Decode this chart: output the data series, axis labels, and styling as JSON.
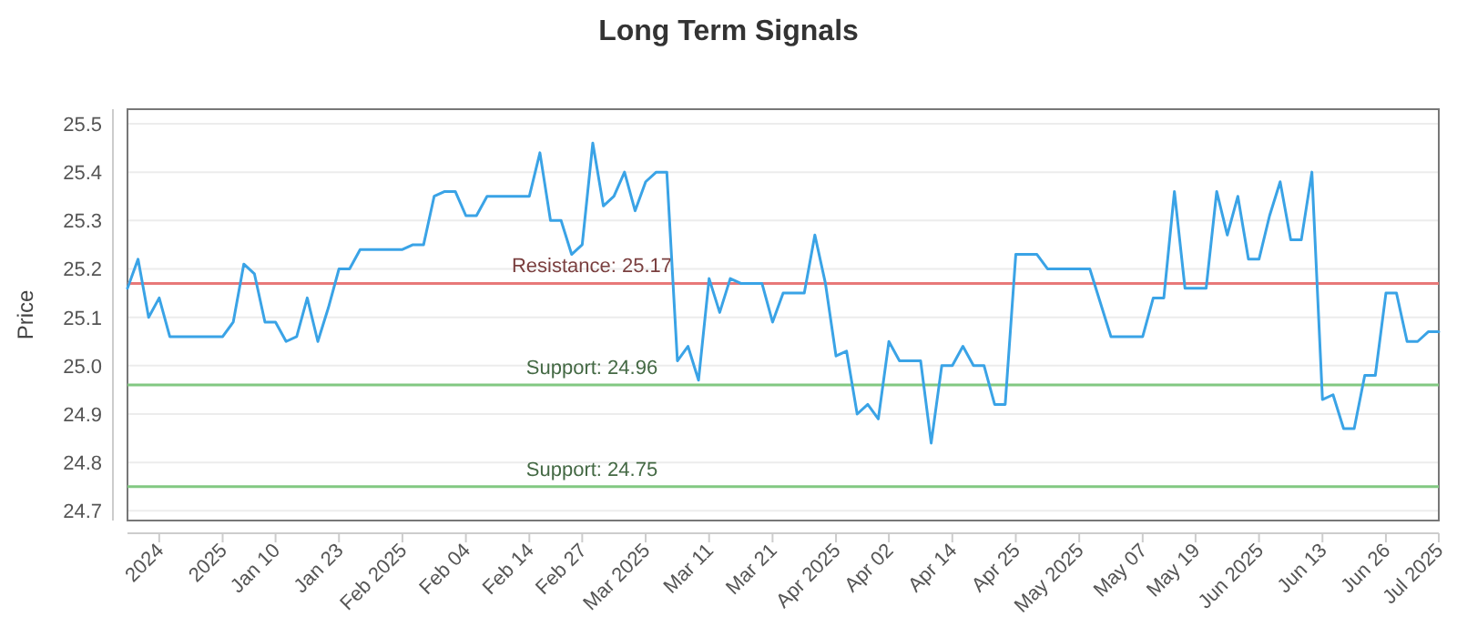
{
  "chart_data": {
    "type": "line",
    "title": "Long Term Signals",
    "ylabel": "Price",
    "categories": [
      null,
      null,
      null,
      "2024",
      null,
      null,
      null,
      null,
      null,
      "2025",
      null,
      null,
      null,
      null,
      "Jan 10",
      null,
      null,
      null,
      null,
      null,
      "Jan 23",
      null,
      null,
      null,
      null,
      null,
      "Feb 2025",
      null,
      null,
      null,
      null,
      null,
      "Feb 04",
      null,
      null,
      null,
      null,
      null,
      "Feb 14",
      null,
      null,
      null,
      null,
      "Feb 27",
      null,
      null,
      null,
      null,
      null,
      "Mar 2025",
      null,
      null,
      null,
      null,
      null,
      "Mar 11",
      null,
      null,
      null,
      null,
      null,
      "Mar 21",
      null,
      null,
      null,
      null,
      null,
      "Apr 2025",
      null,
      null,
      null,
      null,
      "Apr 02",
      null,
      null,
      null,
      null,
      null,
      "Apr 14",
      null,
      null,
      null,
      null,
      null,
      "Apr 25",
      null,
      null,
      null,
      null,
      null,
      "May 2025",
      null,
      null,
      null,
      null,
      null,
      "May 07",
      null,
      null,
      null,
      null,
      "May 19",
      null,
      null,
      null,
      null,
      null,
      "Jun 2025",
      null,
      null,
      null,
      null,
      null,
      "Jun 13",
      null,
      null,
      null,
      null,
      null,
      "Jun 26",
      null,
      null,
      null,
      null,
      "Jul 2025"
    ],
    "series": [
      {
        "color": "#3aa3e6",
        "values": [
          25.16,
          25.22,
          25.1,
          25.14,
          25.06,
          25.06,
          25.06,
          25.06,
          25.06,
          25.06,
          25.09,
          25.21,
          25.19,
          25.09,
          25.09,
          25.05,
          25.06,
          25.14,
          25.05,
          25.12,
          25.2,
          25.2,
          25.24,
          25.24,
          25.24,
          25.24,
          25.24,
          25.25,
          25.25,
          25.35,
          25.36,
          25.36,
          25.31,
          25.31,
          25.35,
          25.35,
          25.35,
          25.35,
          25.35,
          25.44,
          25.3,
          25.3,
          25.23,
          25.25,
          25.46,
          25.33,
          25.35,
          25.4,
          25.32,
          25.38,
          25.4,
          25.4,
          25.01,
          25.04,
          24.97,
          25.18,
          25.11,
          25.18,
          25.17,
          25.17,
          25.17,
          25.09,
          25.15,
          25.15,
          25.15,
          25.27,
          25.17,
          25.02,
          25.03,
          24.9,
          24.92,
          24.89,
          25.05,
          25.01,
          25.01,
          25.01,
          24.84,
          25.0,
          25.0,
          25.04,
          25.0,
          25.0,
          24.92,
          24.92,
          25.23,
          25.23,
          25.23,
          25.2,
          25.2,
          25.2,
          25.2,
          25.2,
          25.13,
          25.06,
          25.06,
          25.06,
          25.06,
          25.14,
          25.14,
          25.36,
          25.16,
          25.16,
          25.16,
          25.36,
          25.27,
          25.35,
          25.22,
          25.22,
          25.31,
          25.38,
          25.26,
          25.26,
          25.4,
          24.93,
          24.94,
          24.87,
          24.87,
          24.98,
          24.98,
          25.15,
          25.15,
          25.05,
          25.05,
          25.07,
          25.07
        ]
      }
    ],
    "ylim": [
      24.68,
      25.53
    ],
    "yticks": [
      {
        "value": 24.7,
        "label": "24.7"
      },
      {
        "value": 24.8,
        "label": "24.8"
      },
      {
        "value": 24.9,
        "label": "24.9"
      },
      {
        "value": 25.0,
        "label": "25.0"
      },
      {
        "value": 25.1,
        "label": "25.1"
      },
      {
        "value": 25.2,
        "label": "25.2"
      },
      {
        "value": 25.3,
        "label": "25.3"
      },
      {
        "value": 25.4,
        "label": "25.4"
      },
      {
        "value": 25.5,
        "label": "25.5"
      }
    ],
    "grid": "y",
    "marker": "none",
    "line_style": "solid",
    "ref_lines": [
      {
        "axis": "y",
        "value": 25.17,
        "label": "Resistance: 25.17",
        "color": "#e87878"
      },
      {
        "axis": "y",
        "value": 24.96,
        "label": "Support: 24.96",
        "color": "#82c882"
      },
      {
        "axis": "y",
        "value": 24.75,
        "label": "Support: 24.75",
        "color": "#82c882"
      }
    ]
  }
}
